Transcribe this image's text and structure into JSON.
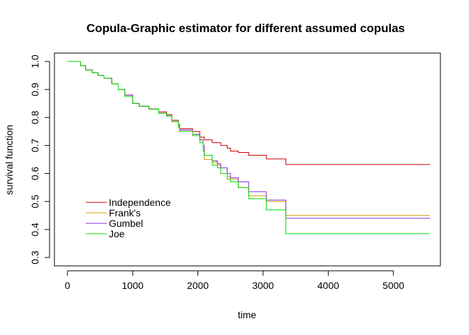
{
  "chart_data": {
    "type": "line",
    "step": true,
    "title": "Copula-Graphic estimator for different assumed copulas",
    "xlabel": "time",
    "ylabel": "survival function",
    "xlim": [
      -200,
      5720
    ],
    "ylim": [
      0.27,
      1.03
    ],
    "xticks": [
      0,
      1000,
      2000,
      3000,
      4000,
      5000
    ],
    "xtick_labels": [
      "0",
      "1000",
      "2000",
      "3000",
      "4000",
      "5000"
    ],
    "yticks": [
      0.3,
      0.4,
      0.5,
      0.6,
      0.7,
      0.8,
      0.9,
      1.0
    ],
    "ytick_labels": [
      "0.3",
      "0.4",
      "0.5",
      "0.6",
      "0.7",
      "0.8",
      "0.9",
      "1.0"
    ],
    "grid": false,
    "legend_position": "bottom-left",
    "series": [
      {
        "name": "Independence",
        "color": "#cc0000",
        "x": [
          0,
          200,
          280,
          380,
          470,
          560,
          680,
          780,
          880,
          1000,
          1100,
          1250,
          1400,
          1520,
          1600,
          1700,
          1720,
          1920,
          2030,
          2100,
          2220,
          2350,
          2450,
          2500,
          2620,
          2780,
          3050,
          3350,
          5560
        ],
        "y": [
          1.0,
          0.985,
          0.97,
          0.96,
          0.95,
          0.94,
          0.92,
          0.9,
          0.88,
          0.85,
          0.84,
          0.83,
          0.82,
          0.81,
          0.79,
          0.775,
          0.76,
          0.75,
          0.73,
          0.72,
          0.71,
          0.7,
          0.69,
          0.68,
          0.675,
          0.665,
          0.652,
          0.632,
          0.632
        ]
      },
      {
        "name": "Frank's",
        "color": "#d4a000",
        "x": [
          0,
          200,
          280,
          380,
          470,
          560,
          680,
          780,
          880,
          1000,
          1100,
          1250,
          1400,
          1520,
          1600,
          1700,
          1720,
          1920,
          2030,
          2080,
          2100,
          2220,
          2300,
          2350,
          2450,
          2500,
          2620,
          2780,
          3050,
          3350,
          5560
        ],
        "y": [
          1.0,
          0.985,
          0.97,
          0.96,
          0.95,
          0.94,
          0.92,
          0.9,
          0.88,
          0.85,
          0.84,
          0.83,
          0.815,
          0.805,
          0.785,
          0.765,
          0.755,
          0.74,
          0.72,
          0.69,
          0.65,
          0.64,
          0.63,
          0.62,
          0.59,
          0.58,
          0.55,
          0.52,
          0.5,
          0.45,
          0.45
        ]
      },
      {
        "name": "Gumbel",
        "color": "#8a2be2",
        "x": [
          0,
          200,
          280,
          380,
          470,
          560,
          680,
          780,
          880,
          1000,
          1100,
          1250,
          1400,
          1520,
          1600,
          1700,
          1720,
          1920,
          2030,
          2080,
          2100,
          2220,
          2300,
          2350,
          2450,
          2500,
          2620,
          2780,
          3050,
          3350,
          5560
        ],
        "y": [
          1.0,
          0.985,
          0.97,
          0.96,
          0.95,
          0.94,
          0.92,
          0.9,
          0.88,
          0.85,
          0.84,
          0.83,
          0.815,
          0.805,
          0.785,
          0.765,
          0.755,
          0.74,
          0.72,
          0.7,
          0.665,
          0.645,
          0.635,
          0.62,
          0.6,
          0.585,
          0.57,
          0.535,
          0.505,
          0.44,
          0.44
        ]
      },
      {
        "name": "Joe",
        "color": "#00dd00",
        "x": [
          0,
          200,
          280,
          380,
          470,
          560,
          680,
          780,
          880,
          1000,
          1100,
          1250,
          1400,
          1520,
          1600,
          1700,
          1720,
          1920,
          2030,
          2080,
          2100,
          2220,
          2300,
          2350,
          2450,
          2500,
          2620,
          2780,
          3050,
          3350,
          5560
        ],
        "y": [
          1.0,
          0.985,
          0.97,
          0.96,
          0.95,
          0.94,
          0.92,
          0.9,
          0.875,
          0.85,
          0.84,
          0.83,
          0.815,
          0.805,
          0.785,
          0.765,
          0.75,
          0.735,
          0.71,
          0.68,
          0.665,
          0.63,
          0.62,
          0.6,
          0.58,
          0.57,
          0.55,
          0.51,
          0.47,
          0.385,
          0.385
        ]
      }
    ]
  }
}
